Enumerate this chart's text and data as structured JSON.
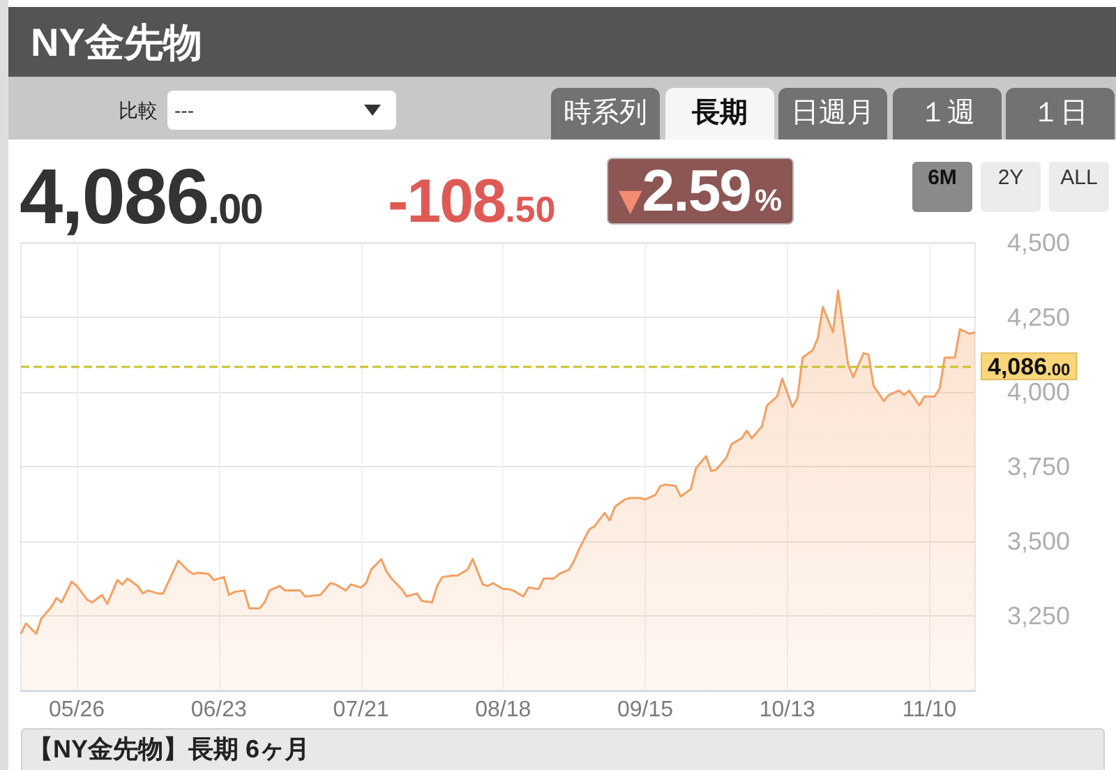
{
  "chart_data": {
    "type": "area",
    "title": "NY金先物",
    "annotations": [
      "4,086.00",
      "-108.50",
      "▼2.59%",
      "比較",
      "---",
      "時系列",
      "長期",
      "日週月",
      "１週",
      "１日",
      "6M",
      "2Y",
      "ALL",
      "【NY金先物】長期 6ヶ月"
    ],
    "x": [
      "--05-15",
      "--05-16",
      "--05-18",
      "--05-19",
      "--05-21",
      "--05-22",
      "--05-23",
      "--05-25",
      "--05-26",
      "--05-28",
      "--05-29",
      "--05-31",
      "--06-01",
      "--06-03",
      "--06-04",
      "--06-05",
      "--06-07",
      "--06-08",
      "--06-09",
      "--06-11",
      "--06-12",
      "--06-15",
      "--06-17",
      "--06-18",
      "--06-19",
      "--06-21",
      "--06-22",
      "--06-24",
      "--06-25",
      "--06-26",
      "--06-28",
      "--06-29",
      "--07-01",
      "--07-02",
      "--07-03",
      "--07-05",
      "--07-06",
      "--07-09",
      "--07-10",
      "--07-13",
      "--07-15",
      "--07-16",
      "--07-18",
      "--07-19",
      "--07-21",
      "--07-22",
      "--07-23",
      "--07-25",
      "--07-26",
      "--07-27",
      "--07-29",
      "--07-30",
      "--08-01",
      "--08-02",
      "--08-04",
      "--08-05",
      "--08-06",
      "--08-08",
      "--08-09",
      "--08-11",
      "--08-12",
      "--08-14",
      "--08-15",
      "--08-16",
      "--08-18",
      "--08-19",
      "--08-20",
      "--08-22",
      "--08-23",
      "--08-25",
      "--08-26",
      "--08-28",
      "--08-29",
      "--08-31",
      "--09-01",
      "--09-02",
      "--09-04",
      "--09-05",
      "--09-07",
      "--09-08",
      "--09-09",
      "--09-11",
      "--09-12",
      "--09-14",
      "--09-15",
      "--09-17",
      "--09-18",
      "--09-19",
      "--09-21",
      "--09-22",
      "--09-24",
      "--09-25",
      "--09-27",
      "--09-28",
      "--09-29",
      "--10-01",
      "--10-02",
      "--10-04",
      "--10-05",
      "--10-06",
      "--10-08",
      "--10-09",
      "--10-11",
      "--10-12",
      "--10-14",
      "--10-15",
      "--10-16",
      "--10-18",
      "--10-19",
      "--10-20",
      "--10-22",
      "--10-23",
      "--10-25",
      "--10-26",
      "--10-28",
      "--10-29",
      "--10-30",
      "--11-01",
      "--11-02",
      "--11-04",
      "--11-05",
      "--11-06",
      "--11-08",
      "--11-09",
      "--11-11",
      "--11-12",
      "--11-13",
      "--11-15",
      "--11-16",
      "--11-18",
      "--11-19"
    ],
    "values": [
      3190,
      3225,
      3190,
      3240,
      3280,
      3310,
      3295,
      3365,
      3350,
      3305,
      3295,
      3320,
      3290,
      3370,
      3355,
      3375,
      3350,
      3325,
      3335,
      3325,
      3325,
      3435,
      3400,
      3390,
      3395,
      3390,
      3370,
      3380,
      3320,
      3330,
      3335,
      3275,
      3275,
      3295,
      3335,
      3350,
      3335,
      3335,
      3315,
      3320,
      3360,
      3355,
      3335,
      3355,
      3345,
      3360,
      3405,
      3440,
      3400,
      3375,
      3340,
      3315,
      3325,
      3300,
      3295,
      3350,
      3380,
      3385,
      3385,
      3405,
      3440,
      3355,
      3350,
      3360,
      3340,
      3340,
      3335,
      3315,
      3345,
      3340,
      3375,
      3375,
      3390,
      3405,
      3435,
      3475,
      3540,
      3550,
      3595,
      3570,
      3615,
      3640,
      3645,
      3645,
      3640,
      3655,
      3685,
      3690,
      3685,
      3650,
      3675,
      3745,
      3785,
      3735,
      3740,
      3780,
      3825,
      3845,
      3870,
      3845,
      3885,
      3955,
      3985,
      4045,
      3950,
      3980,
      4115,
      4140,
      4180,
      4285,
      4200,
      4340,
      4090,
      4050,
      4130,
      4125,
      4020,
      3970,
      3990,
      4005,
      3990,
      4005,
      3955,
      3985,
      3985,
      4010,
      4115,
      4115,
      4210,
      4195,
      4200
    ],
    "color": "#f4a062",
    "marker": "none",
    "xlim": [
      "--05-15",
      "--11-19"
    ],
    "xticks": [
      {
        "value": "--05-26",
        "label": "05/26"
      },
      {
        "value": "--06-23",
        "label": "06/23"
      },
      {
        "value": "--07-21",
        "label": "07/21"
      },
      {
        "value": "--08-18",
        "label": "08/18"
      },
      {
        "value": "--09-15",
        "label": "09/15"
      },
      {
        "value": "--10-13",
        "label": "10/13"
      },
      {
        "value": "--11-10",
        "label": "11/10"
      }
    ],
    "ylim": [
      3000,
      4500
    ],
    "yticks": [
      {
        "value": 3250,
        "label": "3,250"
      },
      {
        "value": 3500,
        "label": "3,500"
      },
      {
        "value": 3750,
        "label": "3,750"
      },
      {
        "value": 4000,
        "label": "4,000"
      },
      {
        "value": 4250,
        "label": "4,250"
      },
      {
        "value": 4500,
        "label": "4,500"
      }
    ],
    "grid": true,
    "ref_lines": [
      {
        "axis": "y",
        "value": 4086,
        "label": "4,086.00",
        "color": "#c9c22c",
        "line_style": "dashed"
      }
    ]
  }
}
